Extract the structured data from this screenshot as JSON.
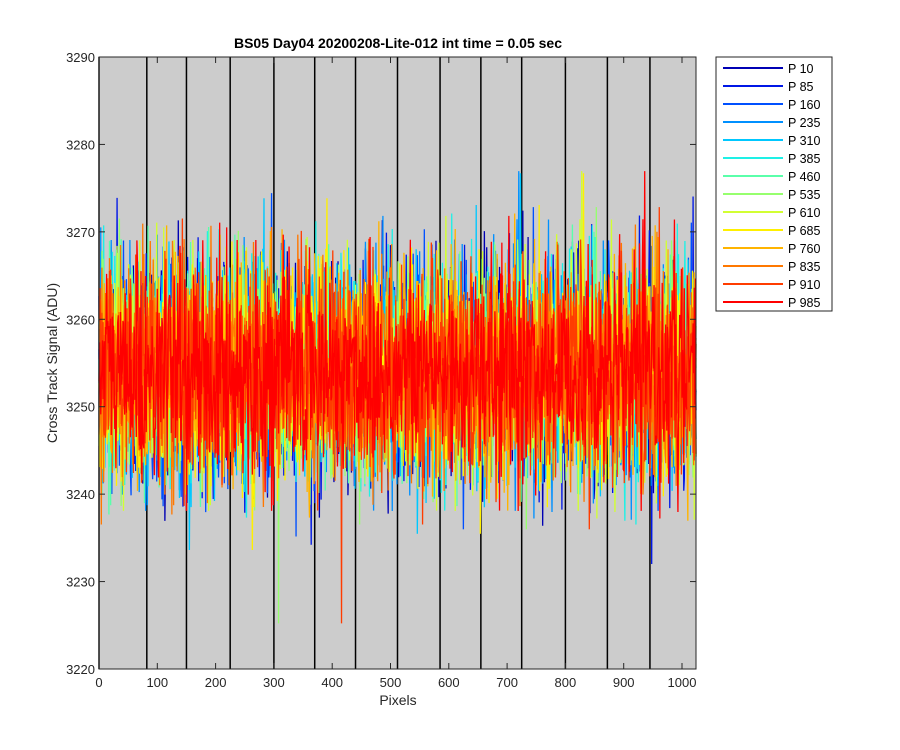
{
  "chart_data": {
    "type": "line",
    "title": "BS05 Day04 20200208-Lite-012 int time = 0.05 sec",
    "xlabel": "Pixels",
    "ylabel": "Cross Track Signal (ADU)",
    "xlim": [
      0,
      1024
    ],
    "ylim": [
      3220,
      3290
    ],
    "xticks": [
      0,
      100,
      200,
      300,
      400,
      500,
      600,
      700,
      800,
      900,
      1000
    ],
    "yticks": [
      3220,
      3230,
      3240,
      3250,
      3260,
      3270,
      3280,
      3290
    ],
    "background": "#cccccc",
    "grid": false,
    "vertical_marker_lines_x": [
      0,
      82,
      150,
      225,
      300,
      370,
      440,
      512,
      585,
      655,
      725,
      800,
      872,
      945
    ],
    "noise": {
      "mean": 3254,
      "sigma": 6,
      "min_observed": 3223,
      "max_observed": 3284
    },
    "legend_location": "outside-top-right",
    "series": [
      {
        "name": "P 10",
        "color": "#0000b4",
        "mean": 3254
      },
      {
        "name": "P 85",
        "color": "#0017e6",
        "mean": 3254
      },
      {
        "name": "P 160",
        "color": "#0050ff",
        "mean": 3254
      },
      {
        "name": "P 235",
        "color": "#0090ff",
        "mean": 3254
      },
      {
        "name": "P 310",
        "color": "#00c8ff",
        "mean": 3254
      },
      {
        "name": "P 385",
        "color": "#1ef0e6",
        "mean": 3254
      },
      {
        "name": "P 460",
        "color": "#5affaa",
        "mean": 3254
      },
      {
        "name": "P 535",
        "color": "#96ff6e",
        "mean": 3254
      },
      {
        "name": "P 610",
        "color": "#d2ff32",
        "mean": 3254
      },
      {
        "name": "P 685",
        "color": "#fff000",
        "mean": 3254
      },
      {
        "name": "P 760",
        "color": "#ffb400",
        "mean": 3254
      },
      {
        "name": "P 835",
        "color": "#ff7800",
        "mean": 3254
      },
      {
        "name": "P 910",
        "color": "#ff3c00",
        "mean": 3254
      },
      {
        "name": "P 985",
        "color": "#ff0000",
        "mean": 3254
      }
    ]
  }
}
